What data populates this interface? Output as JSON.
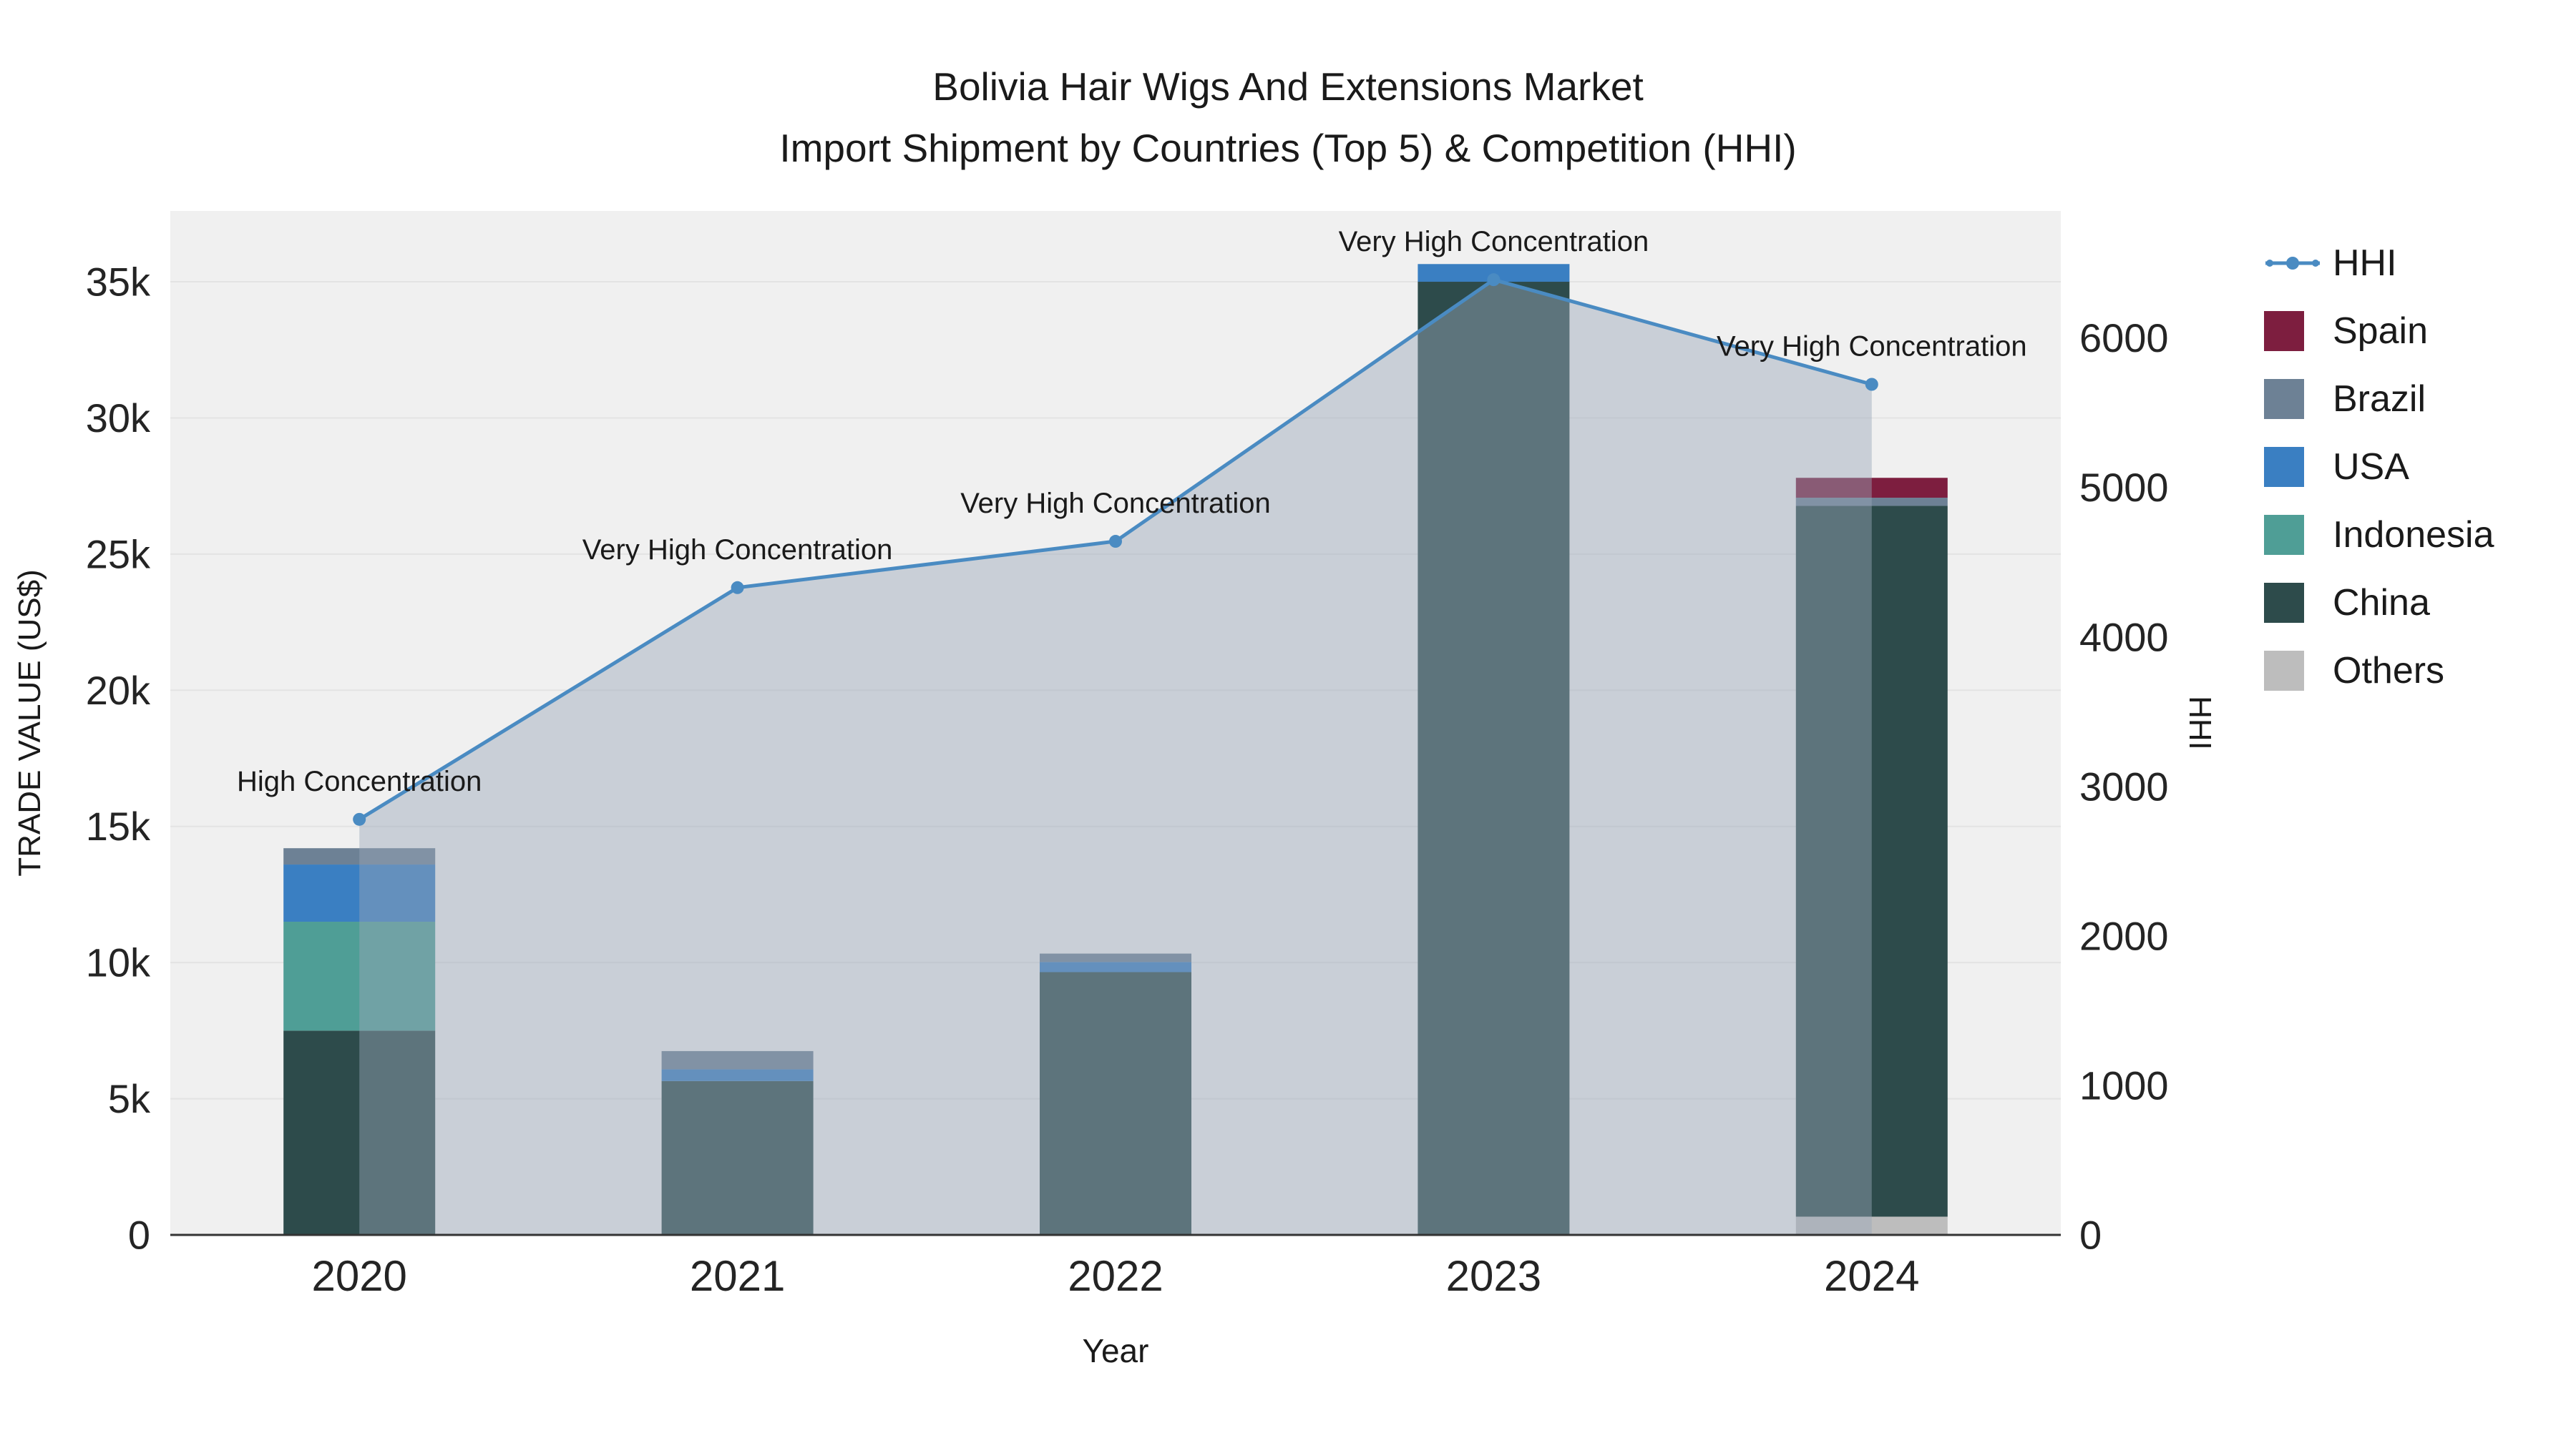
{
  "chart": {
    "title_line1": "Bolivia Hair Wigs And Extensions Market",
    "title_line2": "Import Shipment by Countries (Top 5) & Competition (HHI)",
    "xlabel": "Year",
    "ylabel_left": "TRADE VALUE (US$)",
    "ylabel_right": "HHI"
  },
  "chart_data": {
    "type": "bar+line",
    "bar_mode": "stacked",
    "title": "Bolivia Hair Wigs And Extensions Market Import Shipment by Countries (Top 5) & Competition (HHI)",
    "categories": [
      "2020",
      "2021",
      "2022",
      "2023",
      "2024"
    ],
    "bar_series": [
      {
        "name": "Others",
        "color": "#bdbdbd",
        "values": [
          0,
          0,
          0,
          0,
          670
        ]
      },
      {
        "name": "China",
        "color": "#2d4b4b",
        "values": [
          7500,
          5650,
          9650,
          35000,
          26100
        ]
      },
      {
        "name": "Indonesia",
        "color": "#4f9e96",
        "values": [
          4000,
          0,
          0,
          0,
          0
        ]
      },
      {
        "name": "USA",
        "color": "#3a7fc2",
        "values": [
          2100,
          430,
          370,
          650,
          0
        ]
      },
      {
        "name": "Brazil",
        "color": "#6d8195",
        "values": [
          600,
          670,
          310,
          0,
          300
        ]
      },
      {
        "name": "Spain",
        "color": "#7d1e3f",
        "values": [
          0,
          0,
          0,
          0,
          730
        ]
      }
    ],
    "line_series": {
      "name": "HHI",
      "color": "#4a8bc2",
      "values": [
        2780,
        4330,
        4640,
        6390,
        5690
      ],
      "area_fill": "rgba(152,166,184,0.45)"
    },
    "annotations": [
      "High Concentration",
      "Very High Concentration",
      "Very High Concentration",
      "Very High Concentration",
      "Very High Concentration"
    ],
    "left_axis": {
      "title": "TRADE VALUE (US$)",
      "max": 37600,
      "ticks": [
        {
          "v": 0,
          "label": "0"
        },
        {
          "v": 5000,
          "label": "5k"
        },
        {
          "v": 10000,
          "label": "10k"
        },
        {
          "v": 15000,
          "label": "15k"
        },
        {
          "v": 20000,
          "label": "20k"
        },
        {
          "v": 25000,
          "label": "25k"
        },
        {
          "v": 30000,
          "label": "30k"
        },
        {
          "v": 35000,
          "label": "35k"
        }
      ]
    },
    "right_axis": {
      "title": "HHI",
      "max": 6850,
      "ticks": [
        {
          "v": 0,
          "label": "0"
        },
        {
          "v": 1000,
          "label": "1000"
        },
        {
          "v": 2000,
          "label": "2000"
        },
        {
          "v": 3000,
          "label": "3000"
        },
        {
          "v": 4000,
          "label": "4000"
        },
        {
          "v": 5000,
          "label": "5000"
        },
        {
          "v": 6000,
          "label": "6000"
        }
      ]
    },
    "x_axis": {
      "title": "Year"
    },
    "legend": [
      {
        "label": "HHI",
        "type": "line",
        "color": "#4a8bc2"
      },
      {
        "label": "Spain",
        "type": "swatch",
        "color": "#7d1e3f"
      },
      {
        "label": "Brazil",
        "type": "swatch",
        "color": "#6d8195"
      },
      {
        "label": "USA",
        "type": "swatch",
        "color": "#3a7fc2"
      },
      {
        "label": "Indonesia",
        "type": "swatch",
        "color": "#4f9e96"
      },
      {
        "label": "China",
        "type": "swatch",
        "color": "#2d4b4b"
      },
      {
        "label": "Others",
        "type": "swatch",
        "color": "#bdbdbd"
      }
    ],
    "style": {
      "plot_bg": "#f0f0f0",
      "gridline": "#e3e3e3",
      "axis_line": "#333333",
      "tick_text": "#242424",
      "annotation_text": "#1a1a1a"
    }
  }
}
